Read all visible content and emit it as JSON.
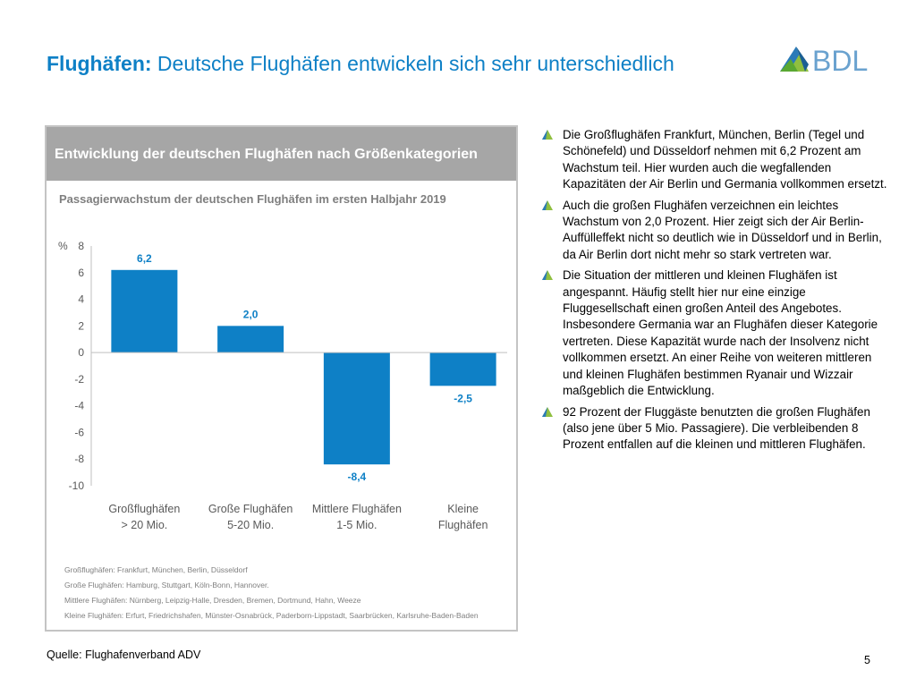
{
  "title": {
    "bold": "Flughäfen:",
    "rest": " Deutsche Flughäfen entwickeln sich sehr unterschiedlich"
  },
  "logo": {
    "text": "BDL",
    "icon": "bdl-logo-icon",
    "text_color": "#6aa2cf"
  },
  "colors": {
    "accent": "#0e80c6",
    "bar": "#0e80c6",
    "header_bg": "#a6a6a6",
    "bullet_green": "#8fbf3f"
  },
  "panel": {
    "header": "Entwicklung der deutschen Flughäfen nach Größenkategorien",
    "subtitle": "Passagierwachstum der deutschen Flughäfen im ersten Halbjahr 2019",
    "footnotes": [
      "Großflughäfen: Frankfurt, München, Berlin, Düsseldorf",
      "Große Flughäfen: Hamburg, Stuttgart, Köln-Bonn, Hannover.",
      "Mittlere Flughäfen: Nürnberg, Leipzig-Halle, Dresden, Bremen, Dortmund, Hahn, Weeze",
      "Kleine Flughäfen: Erfurt, Friedrichshafen, Münster-Osnabrück, Paderborn-Lippstadt, Saarbrücken, Karlsruhe-Baden-Baden"
    ]
  },
  "chart_data": {
    "type": "bar",
    "title": "Passagierwachstum der deutschen Flughäfen im ersten Halbjahr 2019",
    "ylabel": "%",
    "ylim": [
      -10,
      8
    ],
    "yticks": [
      8,
      6,
      4,
      2,
      0,
      -2,
      -4,
      -6,
      -8,
      -10
    ],
    "categories": [
      [
        "Großflughäfen",
        "> 20 Mio."
      ],
      [
        "Große Flughäfen",
        "5-20 Mio."
      ],
      [
        "Mittlere Flughäfen",
        "1-5 Mio."
      ],
      [
        "Kleine",
        "Flughäfen"
      ]
    ],
    "values": [
      6.2,
      2.0,
      -8.4,
      -2.5
    ],
    "value_labels": [
      "6,2",
      "2,0",
      "-8,4",
      "-2,5"
    ],
    "grid": false,
    "legend": "none"
  },
  "bullets": [
    "Die Großflughäfen Frankfurt, München, Berlin (Tegel und Schönefeld) und Düsseldorf nehmen mit 6,2 Prozent am Wachstum teil. Hier wurden auch die wegfallenden Kapazitäten der Air Berlin und Germania vollkommen ersetzt.",
    "Auch die großen Flughäfen verzeichnen ein leichtes Wachstum von 2,0 Prozent. Hier zeigt sich der Air Berlin-Auffülleffekt nicht so deutlich wie in Düsseldorf und in Berlin, da Air Berlin dort nicht mehr so stark vertreten war.",
    "Die Situation der mittleren und kleinen Flughäfen ist angespannt. Häufig stellt hier nur eine einzige Fluggesellschaft einen großen Anteil des Angebotes. Insbesondere Germania war an Flughäfen dieser Kategorie vertreten. Diese Kapazität wurde nach der Insolvenz nicht vollkommen ersetzt. An einer Reihe von weiteren mittleren und kleinen Flughäfen bestimmen Ryanair und Wizzair maßgeblich die Entwicklung.",
    "92 Prozent der Fluggäste benutzten die großen Flughäfen (also jene über 5 Mio. Passagiere). Die verbleibenden 8 Prozent entfallen auf die kleinen und mittleren Flughäfen."
  ],
  "source": "Quelle: Flughafenverband ADV",
  "page_number": "5"
}
